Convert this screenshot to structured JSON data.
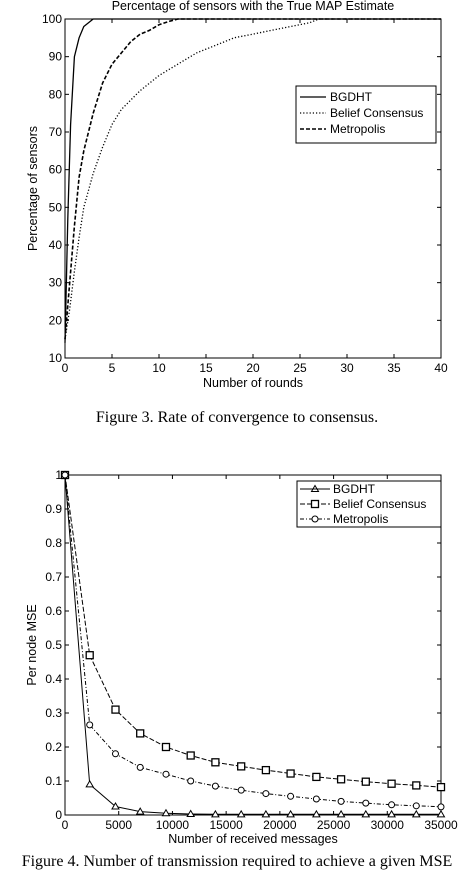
{
  "chart_data": [
    {
      "type": "line",
      "title": "Percentage of sensors with the True MAP Estimate",
      "xlabel": "Number of rounds",
      "ylabel": "Percentage of sensors",
      "xlim": [
        0,
        40
      ],
      "ylim": [
        10,
        100
      ],
      "xticks": [
        "0",
        "5",
        "10",
        "15",
        "20",
        "25",
        "30",
        "35",
        "40"
      ],
      "yticks": [
        "10",
        "20",
        "30",
        "40",
        "50",
        "60",
        "70",
        "80",
        "90",
        "100"
      ],
      "grid": false,
      "legend_position": "top-right",
      "series": [
        {
          "name": "BGDHT",
          "style": "solid",
          "x": [
            0,
            0.3,
            0.6,
            1,
            1.5,
            2,
            2.5,
            3,
            4,
            6,
            10,
            20,
            40
          ],
          "y": [
            14,
            47,
            72,
            90,
            95,
            98,
            99,
            100,
            100,
            100,
            100,
            100,
            100
          ]
        },
        {
          "name": "Belief Consensus",
          "style": "dotted",
          "x": [
            0,
            0.5,
            1,
            1.5,
            2,
            3,
            4,
            5,
            6,
            8,
            10,
            12,
            14,
            16,
            18,
            20,
            22,
            24,
            26,
            27,
            30,
            40
          ],
          "y": [
            15,
            23,
            33,
            42,
            50,
            59,
            66,
            72,
            76,
            81,
            85,
            88,
            91,
            93,
            95,
            96,
            97,
            98,
            99,
            100,
            100,
            100
          ]
        },
        {
          "name": "Metropolis",
          "style": "dashed",
          "x": [
            0,
            0.5,
            1,
            1.5,
            2,
            3,
            4,
            5,
            6,
            7,
            8,
            9,
            10,
            11,
            12,
            13,
            40
          ],
          "y": [
            15,
            30,
            45,
            58,
            65,
            75,
            83,
            88,
            91,
            94,
            96,
            97,
            98.5,
            99.3,
            100,
            100,
            100
          ]
        }
      ]
    },
    {
      "type": "line",
      "title": "",
      "xlabel": "Number of received messages",
      "ylabel": "Per node MSE",
      "xlim": [
        0,
        35000
      ],
      "ylim": [
        0,
        1
      ],
      "xticks": [
        "0",
        "5000",
        "10000",
        "15000",
        "20000",
        "25000",
        "30000",
        "35000"
      ],
      "yticks": [
        "0",
        "0.1",
        "0.2",
        "0.3",
        "0.4",
        "0.5",
        "0.6",
        "0.7",
        "0.8",
        "0.9",
        "1"
      ],
      "grid": false,
      "legend_position": "top-right",
      "series": [
        {
          "name": "BGDHT",
          "marker": "triangle",
          "x": [
            0,
            2300,
            4700,
            7000,
            9400,
            11700,
            14000,
            16400,
            18700,
            21000,
            23400,
            25700,
            28000,
            30400,
            32700,
            35000
          ],
          "y": [
            1.0,
            0.09,
            0.025,
            0.01,
            0.005,
            0.003,
            0.002,
            0.002,
            0.002,
            0.002,
            0.002,
            0.002,
            0.002,
            0.002,
            0.002,
            0.002
          ]
        },
        {
          "name": "Belief Consensus",
          "marker": "square",
          "x": [
            0,
            2300,
            4700,
            7000,
            9400,
            11700,
            14000,
            16400,
            18700,
            21000,
            23400,
            25700,
            28000,
            30400,
            32700,
            35000
          ],
          "y": [
            1.0,
            0.47,
            0.31,
            0.24,
            0.2,
            0.175,
            0.155,
            0.143,
            0.132,
            0.122,
            0.112,
            0.105,
            0.098,
            0.092,
            0.087,
            0.082
          ]
        },
        {
          "name": "Metropolis",
          "marker": "circle",
          "x": [
            0,
            2300,
            4700,
            7000,
            9400,
            11700,
            14000,
            16400,
            18700,
            21000,
            23400,
            25700,
            28000,
            30400,
            32700,
            35000
          ],
          "y": [
            1.0,
            0.265,
            0.18,
            0.14,
            0.12,
            0.1,
            0.085,
            0.073,
            0.063,
            0.055,
            0.047,
            0.04,
            0.035,
            0.03,
            0.027,
            0.024
          ]
        }
      ]
    }
  ],
  "captions": {
    "figure3": "Figure 3. Rate of convergence to consensus.",
    "figure4": "Figure 4. Number of transmission required to achieve a given MSE"
  }
}
